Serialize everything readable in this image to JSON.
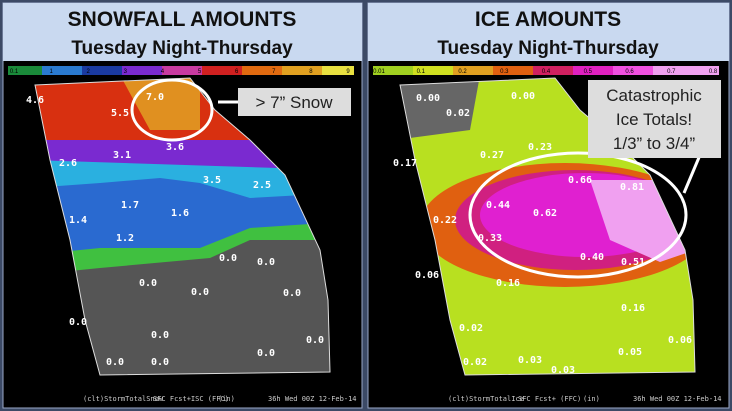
{
  "panels": [
    {
      "title": "SNOWFALL AMOUNTS",
      "subtitle": "Tuesday Night-Thursday",
      "scale_labels": [
        "0.1",
        "1",
        "2",
        "3",
        "4",
        "5",
        "6",
        "7",
        "8",
        "9"
      ],
      "map_labels": [
        "4.6",
        "5.5",
        "7.0",
        "3.6",
        "3.1",
        "2.6",
        "3.5",
        "2.5",
        "1.7",
        "1.4",
        "1.6",
        "1.2",
        "0.0",
        "0.0",
        "0.0",
        "0.0",
        "0.0",
        "0.0",
        "0.0",
        "0.0",
        "0.0",
        "0.0",
        "0.0"
      ],
      "callout": [
        "> 7” Snow"
      ],
      "footer": [
        "(clt)StormTotalSnow",
        "SFC Fcst+ISC (FFC)",
        "(in)",
        "36h Wed 00Z 12-Feb-14"
      ]
    },
    {
      "title": "ICE AMOUNTS",
      "subtitle": "Tuesday Night-Thursday",
      "scale_labels": [
        "0.01",
        "0.1",
        "0.2",
        "0.3",
        "0.4",
        "0.5",
        "0.6",
        "0.7",
        "0.8"
      ],
      "map_labels": [
        "0.00",
        "0.00",
        "0.02",
        "0.27",
        "0.23",
        "0.17",
        "0.66",
        "0.81",
        "0.44",
        "0.62",
        "0.22",
        "0.33",
        "0.40",
        "0.51",
        "0.06",
        "0.16",
        "0.16",
        "0.02",
        "0.06",
        "0.05",
        "0.02",
        "0.03",
        "0.03"
      ],
      "callout": [
        "Catastrophic",
        "Ice Totals!",
        "1/3” to 3/4”"
      ],
      "footer": [
        "(clt)StormTotalIce",
        "SFC Fcst+ (FFC)",
        "(in)",
        "36h Wed 00Z 12-Feb-14"
      ]
    }
  ]
}
